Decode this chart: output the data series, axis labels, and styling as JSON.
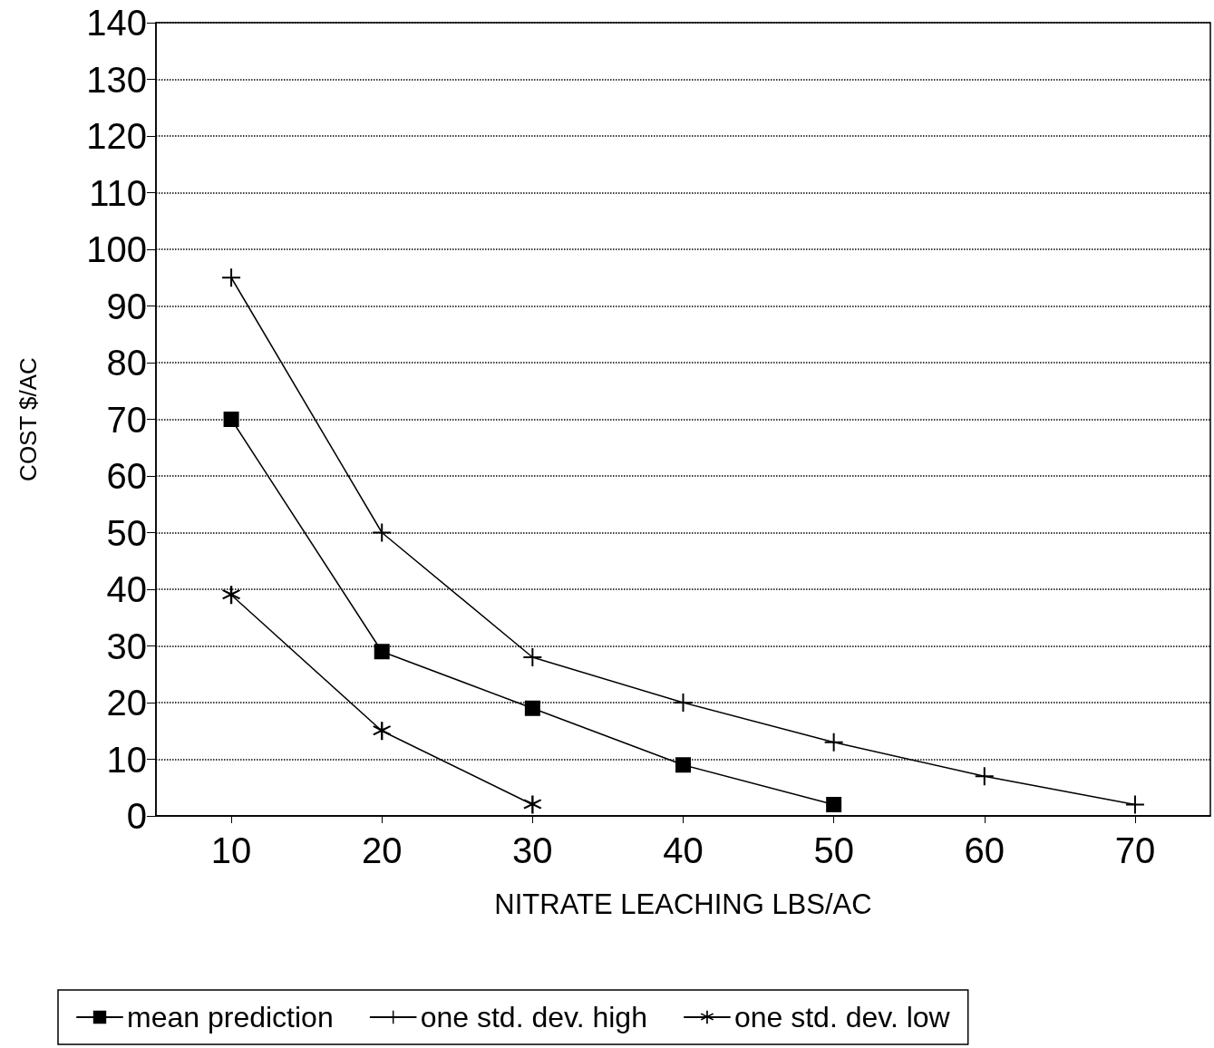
{
  "chart_data": {
    "type": "line",
    "xlabel": "NITRATE LEACHING LBS/AC",
    "ylabel": "COST $/AC",
    "xlim": [
      5,
      75
    ],
    "xticks": [
      10,
      20,
      30,
      40,
      50,
      60,
      70
    ],
    "ylim": [
      0,
      140
    ],
    "yticks": [
      0,
      10,
      20,
      30,
      40,
      50,
      60,
      70,
      80,
      90,
      100,
      110,
      120,
      130,
      140
    ],
    "grid": "y",
    "legend": "bottom",
    "line_style": "solid",
    "series": [
      {
        "name": "mean prediction",
        "color": "#000000",
        "marker": "square",
        "x": [
          10,
          20,
          30,
          40,
          50
        ],
        "values": [
          70,
          29,
          19,
          9,
          2
        ]
      },
      {
        "name": "one std. dev. high",
        "color": "#000000",
        "marker": "cross",
        "x": [
          10,
          20,
          30,
          40,
          50,
          60,
          70
        ],
        "values": [
          95,
          50,
          28,
          20,
          13,
          7,
          2
        ]
      },
      {
        "name": "one std. dev. low",
        "color": "#000000",
        "marker": "star",
        "x": [
          10,
          20,
          30
        ],
        "values": [
          39,
          15,
          2
        ]
      }
    ]
  }
}
